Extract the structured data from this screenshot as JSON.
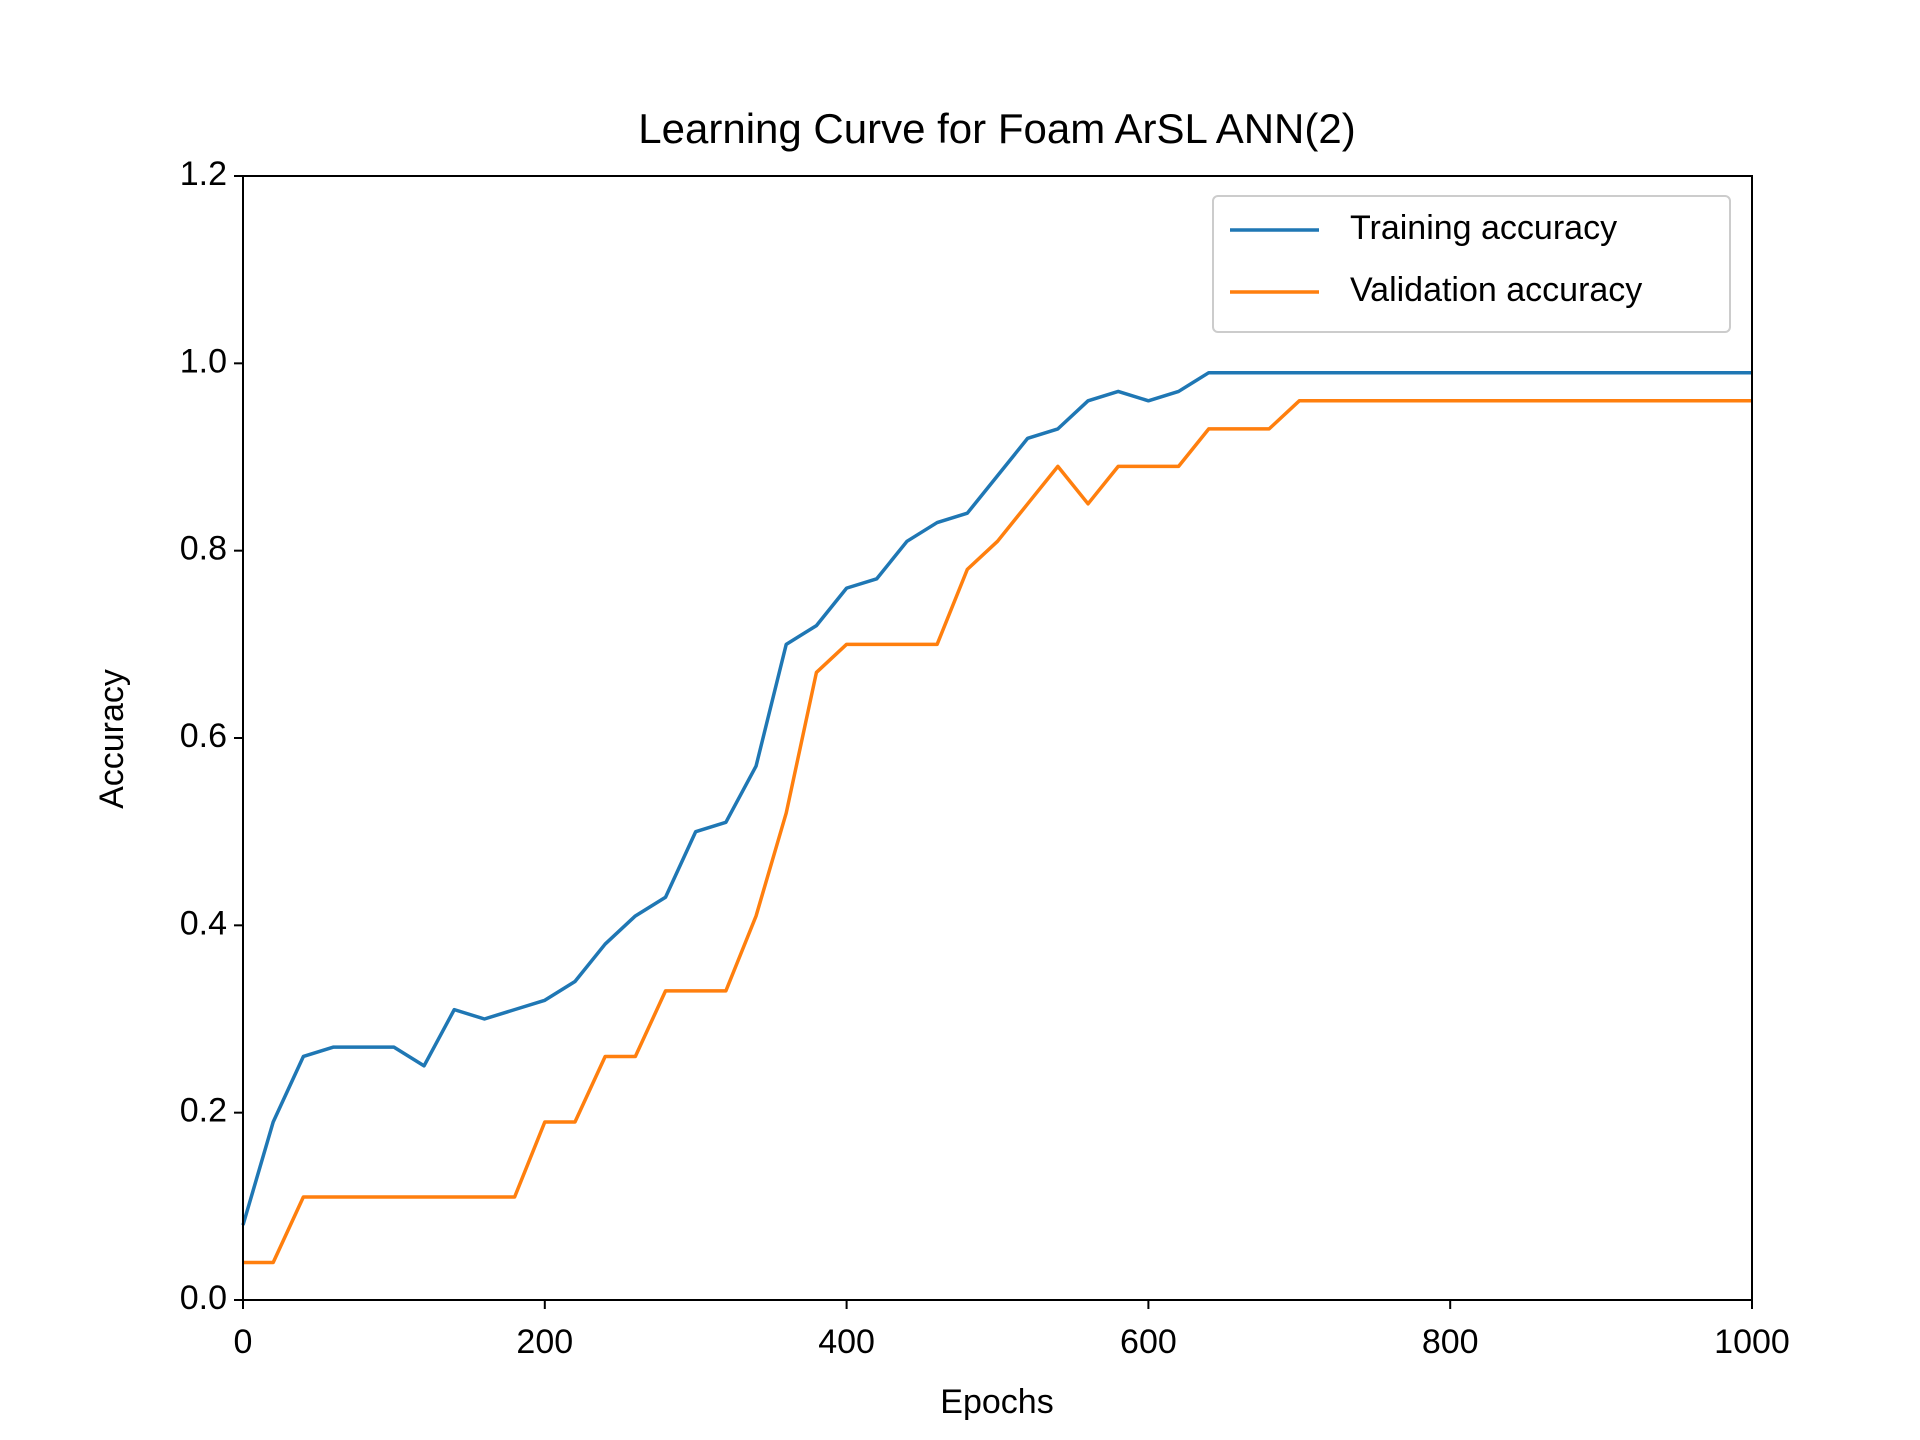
{
  "chart_data": {
    "type": "line",
    "title": "Learning Curve for Foam ArSL ANN(2)",
    "x_label": "Epochs",
    "y_label": "Accuracy",
    "x": [
      0,
      20,
      40,
      60,
      80,
      100,
      120,
      140,
      160,
      180,
      200,
      220,
      240,
      260,
      280,
      300,
      320,
      340,
      360,
      380,
      400,
      420,
      440,
      460,
      480,
      500,
      520,
      540,
      560,
      580,
      600,
      620,
      640,
      660,
      680,
      700,
      720,
      740,
      760,
      780,
      800,
      820,
      840,
      860,
      880,
      900,
      920,
      940,
      960,
      980,
      1000
    ],
    "series": [
      {
        "name": "Training accuracy",
        "color": "#1f77b4",
        "values": [
          0.08,
          0.19,
          0.26,
          0.27,
          0.27,
          0.27,
          0.25,
          0.31,
          0.3,
          0.31,
          0.32,
          0.34,
          0.38,
          0.41,
          0.43,
          0.5,
          0.51,
          0.57,
          0.7,
          0.72,
          0.76,
          0.77,
          0.81,
          0.83,
          0.84,
          0.88,
          0.92,
          0.93,
          0.96,
          0.97,
          0.96,
          0.97,
          0.99,
          0.99,
          0.99,
          0.99,
          0.99,
          0.99,
          0.99,
          0.99,
          0.99,
          0.99,
          0.99,
          0.99,
          0.99,
          0.99,
          0.99,
          0.99,
          0.99,
          0.99,
          0.99
        ]
      },
      {
        "name": "Validation accuracy",
        "color": "#ff7f0e",
        "values": [
          0.04,
          0.04,
          0.11,
          0.11,
          0.11,
          0.11,
          0.11,
          0.11,
          0.11,
          0.11,
          0.19,
          0.19,
          0.26,
          0.26,
          0.33,
          0.33,
          0.33,
          0.41,
          0.52,
          0.67,
          0.7,
          0.7,
          0.7,
          0.7,
          0.78,
          0.81,
          0.85,
          0.89,
          0.85,
          0.89,
          0.89,
          0.89,
          0.93,
          0.93,
          0.93,
          0.96,
          0.96,
          0.96,
          0.96,
          0.96,
          0.96,
          0.96,
          0.96,
          0.96,
          0.96,
          0.96,
          0.96,
          0.96,
          0.96,
          0.96,
          0.96
        ]
      }
    ],
    "xlim": [
      0,
      1000
    ],
    "ylim": [
      0,
      1.2
    ],
    "xticks": [
      0,
      200,
      400,
      600,
      800,
      1000
    ],
    "yticks": [
      {
        "value": 0,
        "label": "0.0"
      },
      0.2,
      0.4,
      0.6,
      0.8,
      {
        "value": 1,
        "label": "1.0"
      },
      1.2
    ],
    "legend": "upper right",
    "grid": false
  }
}
